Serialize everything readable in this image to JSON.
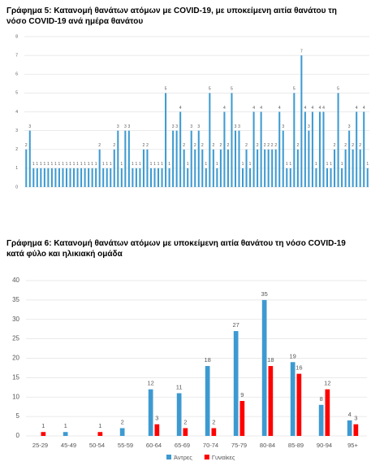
{
  "chart_data": [
    {
      "type": "bar",
      "title": "Γράφημα 5: Κατανομή θανάτων ατόμων με COVID-19, με υποκείμενη αιτία θανάτου τη νόσο COVID-19 ανά ημέρα θανάτου",
      "values": [
        2,
        3,
        1,
        1,
        1,
        1,
        1,
        1,
        1,
        1,
        1,
        1,
        1,
        1,
        1,
        1,
        1,
        1,
        1,
        1,
        2,
        1,
        1,
        1,
        2,
        3,
        1,
        3,
        3,
        1,
        1,
        1,
        2,
        2,
        1,
        1,
        1,
        1,
        5,
        1,
        3,
        3,
        4,
        2,
        1,
        3,
        2,
        3,
        2,
        1,
        5,
        2,
        1,
        2,
        4,
        2,
        5,
        3,
        3,
        1,
        2,
        1,
        4,
        2,
        4,
        2,
        2,
        2,
        2,
        4,
        3,
        1,
        1,
        5,
        2,
        7,
        4,
        3,
        4,
        1,
        4,
        4,
        1,
        1,
        2,
        5,
        1,
        2,
        3,
        2,
        4,
        2,
        4,
        1
      ],
      "color": "#3d9ad1",
      "ylim": [
        0,
        8
      ],
      "yticks": [
        0,
        1,
        2,
        3,
        4,
        5,
        6,
        7,
        8
      ],
      "grid": true
    },
    {
      "type": "bar",
      "title": "Γράφημα 6: Κατανομή θανάτων ατόμων με υποκείμενη αιτία θανάτου τη νόσο COVID-19 κατά φύλο και ηλικιακή ομάδα",
      "categories": [
        "25-29",
        "45-49",
        "50-54",
        "55-59",
        "60-64",
        "65-69",
        "70-74",
        "75-79",
        "80-84",
        "85-89",
        "90-94",
        "95+"
      ],
      "series": [
        {
          "name": "Άντρες",
          "color": "#3d9ad1",
          "values": [
            null,
            1,
            null,
            2,
            12,
            11,
            18,
            27,
            35,
            19,
            8,
            4
          ]
        },
        {
          "name": "Γυναίκες",
          "color": "#ff0000",
          "values": [
            1,
            null,
            1,
            null,
            3,
            2,
            2,
            9,
            18,
            16,
            12,
            3
          ]
        }
      ],
      "ylim": [
        0,
        40
      ],
      "yticks": [
        0,
        5,
        10,
        15,
        20,
        25,
        30,
        35,
        40
      ],
      "grid": true,
      "legend": "bottom"
    }
  ]
}
